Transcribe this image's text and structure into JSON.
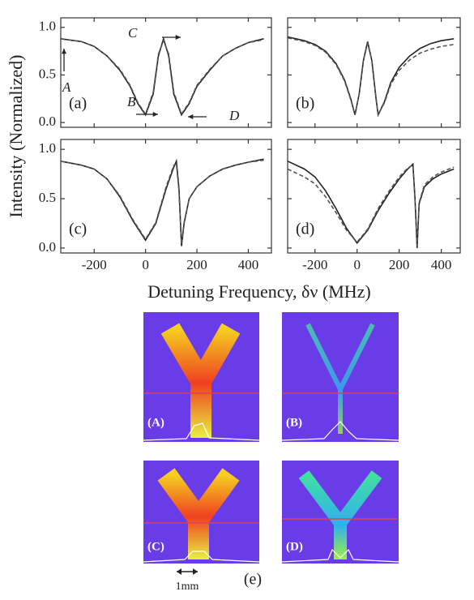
{
  "ylabel": "Intensity (Normalized)",
  "xlabel": "Detuning Frequency, δν (MHz)",
  "chart_data": [
    {
      "type": "line",
      "panel_label": "(a)",
      "annotations": [
        "A",
        "B",
        "C",
        "D"
      ],
      "x": [
        -330,
        -250,
        -200,
        -150,
        -100,
        -60,
        -30,
        0,
        30,
        50,
        70,
        90,
        110,
        140,
        170,
        200,
        250,
        300,
        350,
        400,
        460
      ],
      "series": [
        {
          "color": "#222",
          "dash": false,
          "values": [
            0.88,
            0.85,
            0.8,
            0.7,
            0.55,
            0.38,
            0.2,
            0.08,
            0.3,
            0.7,
            0.88,
            0.7,
            0.3,
            0.08,
            0.2,
            0.38,
            0.55,
            0.7,
            0.78,
            0.84,
            0.88
          ]
        },
        {
          "color": "#555",
          "dash": true,
          "values": [
            0.88,
            0.85,
            0.8,
            0.7,
            0.56,
            0.39,
            0.21,
            0.09,
            0.32,
            0.72,
            0.86,
            0.72,
            0.32,
            0.09,
            0.21,
            0.39,
            0.56,
            0.7,
            0.78,
            0.84,
            0.87
          ]
        }
      ],
      "xlim": [
        -330,
        490
      ],
      "ylim": [
        -0.05,
        1.1
      ],
      "xticks": [
        -200,
        0,
        200,
        400
      ],
      "yticks": [
        {
          "value": 0,
          "label": "0.0"
        },
        {
          "value": 0.5,
          "label": "0.5"
        },
        {
          "value": 1,
          "label": "1.0"
        }
      ],
      "xtick_labels": false,
      "ytick_labels": true
    },
    {
      "type": "line",
      "panel_label": "(b)",
      "x": [
        -330,
        -250,
        -200,
        -150,
        -100,
        -60,
        -30,
        -10,
        10,
        30,
        50,
        70,
        90,
        100,
        130,
        160,
        200,
        250,
        300,
        350,
        400,
        460
      ],
      "series": [
        {
          "color": "#222",
          "dash": false,
          "values": [
            0.9,
            0.86,
            0.82,
            0.75,
            0.62,
            0.45,
            0.25,
            0.08,
            0.3,
            0.65,
            0.85,
            0.65,
            0.25,
            0.08,
            0.22,
            0.42,
            0.58,
            0.7,
            0.78,
            0.83,
            0.86,
            0.88
          ]
        },
        {
          "color": "#555",
          "dash": true,
          "values": [
            0.89,
            0.85,
            0.81,
            0.74,
            0.61,
            0.44,
            0.24,
            0.08,
            0.3,
            0.66,
            0.83,
            0.66,
            0.26,
            0.08,
            0.21,
            0.4,
            0.55,
            0.66,
            0.73,
            0.77,
            0.8,
            0.82
          ]
        }
      ],
      "xlim": [
        -330,
        490
      ],
      "ylim": [
        -0.05,
        1.1
      ],
      "xticks": [
        -200,
        0,
        200,
        400
      ],
      "yticks": [
        0,
        0.5,
        1
      ],
      "xtick_labels": false,
      "ytick_labels": false
    },
    {
      "type": "line",
      "panel_label": "(c)",
      "x": [
        -330,
        -250,
        -200,
        -150,
        -100,
        -50,
        0,
        40,
        80,
        110,
        120,
        130,
        140,
        150,
        170,
        200,
        250,
        300,
        350,
        400,
        460
      ],
      "series": [
        {
          "color": "#222",
          "dash": false,
          "values": [
            0.88,
            0.84,
            0.8,
            0.7,
            0.52,
            0.28,
            0.08,
            0.25,
            0.6,
            0.82,
            0.88,
            0.6,
            0.02,
            0.25,
            0.5,
            0.62,
            0.73,
            0.8,
            0.84,
            0.87,
            0.9
          ]
        },
        {
          "color": "#555",
          "dash": true,
          "values": [
            0.88,
            0.84,
            0.8,
            0.7,
            0.53,
            0.29,
            0.09,
            0.26,
            0.62,
            0.84,
            0.85,
            0.58,
            0.04,
            0.26,
            0.5,
            0.62,
            0.73,
            0.8,
            0.84,
            0.87,
            0.89
          ]
        }
      ],
      "xlim": [
        -330,
        490
      ],
      "ylim": [
        -0.05,
        1.1
      ],
      "xticks": [
        -200,
        0,
        200,
        400
      ],
      "yticks": [
        {
          "value": 0,
          "label": "0.0"
        },
        {
          "value": 0.5,
          "label": "0.5"
        },
        {
          "value": 1,
          "label": "1.0"
        }
      ],
      "xtick_labels": true,
      "ytick_labels": true
    },
    {
      "type": "line",
      "panel_label": "(d)",
      "x": [
        -330,
        -250,
        -200,
        -150,
        -100,
        -50,
        0,
        50,
        100,
        150,
        200,
        240,
        265,
        275,
        285,
        295,
        320,
        360,
        400,
        460
      ],
      "series": [
        {
          "color": "#222",
          "dash": false,
          "values": [
            0.88,
            0.8,
            0.72,
            0.58,
            0.4,
            0.2,
            0.05,
            0.18,
            0.38,
            0.55,
            0.7,
            0.8,
            0.85,
            0.5,
            0.0,
            0.45,
            0.62,
            0.7,
            0.75,
            0.8
          ]
        },
        {
          "color": "#555",
          "dash": true,
          "values": [
            0.8,
            0.72,
            0.65,
            0.52,
            0.36,
            0.18,
            0.06,
            0.19,
            0.4,
            0.57,
            0.72,
            0.81,
            0.84,
            0.48,
            0.02,
            0.46,
            0.64,
            0.72,
            0.77,
            0.82
          ]
        }
      ],
      "xlim": [
        -330,
        490
      ],
      "ylim": [
        -0.05,
        1.1
      ],
      "xticks": [
        -200,
        0,
        200,
        400
      ],
      "yticks": [
        0,
        0.5,
        1
      ],
      "xtick_labels": true,
      "ytick_labels": false
    }
  ],
  "images": {
    "panels": [
      {
        "label": "(A)"
      },
      {
        "label": "(B)"
      },
      {
        "label": "(C)"
      },
      {
        "label": "(D)"
      }
    ],
    "scale": "1mm",
    "label": "(e)"
  }
}
